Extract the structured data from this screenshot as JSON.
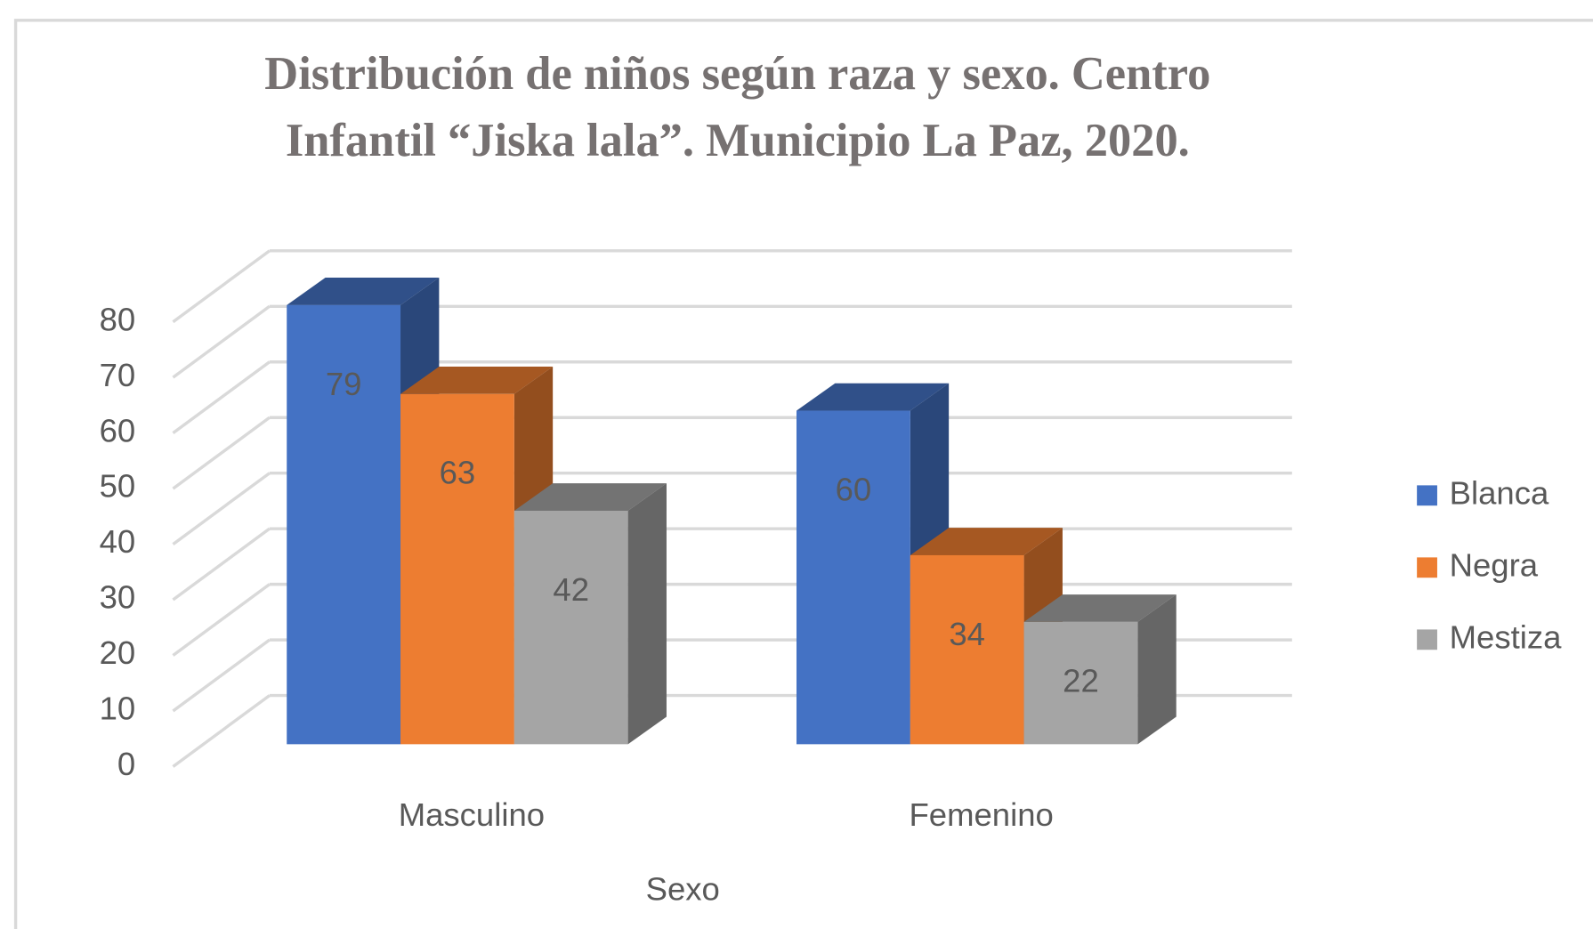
{
  "chart_data": {
    "type": "bar3d",
    "title": [
      "Distribución de niños según raza y sexo. Centro",
      "Infantil “Jiska lala”. Municipio La Paz, 2020."
    ],
    "x_label": "Sexo",
    "categories": [
      "Masculino",
      "Femenino"
    ],
    "series": [
      {
        "name": "Blanca",
        "color": "#4472c4",
        "values": [
          79,
          60
        ]
      },
      {
        "name": "Negra",
        "color": "#ed7d31",
        "values": [
          63,
          34
        ]
      },
      {
        "name": "Mestiza",
        "color": "#a5a5a5",
        "values": [
          42,
          22
        ]
      }
    ],
    "ylim": [
      0,
      80
    ],
    "yticks": [
      0,
      10,
      20,
      30,
      40,
      50,
      60,
      70,
      80
    ],
    "grid": true,
    "legend": "right"
  }
}
